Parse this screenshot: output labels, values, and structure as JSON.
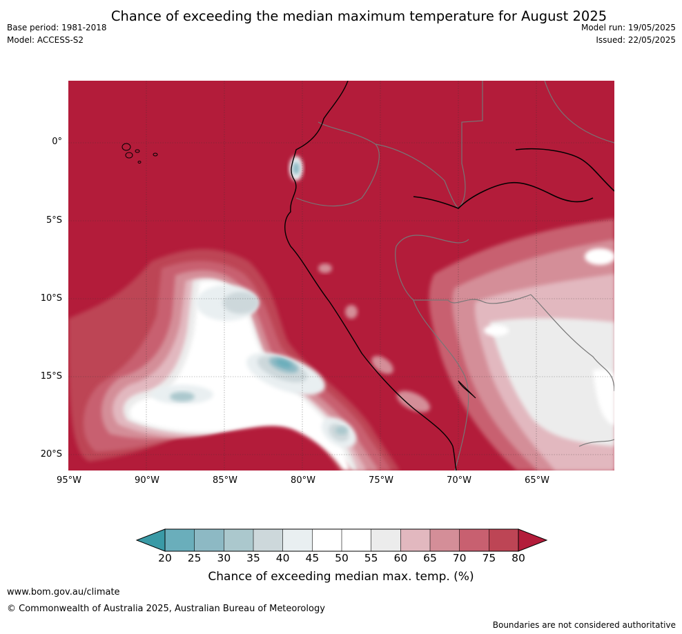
{
  "title": "Chance of exceeding the median maximum temperature for August 2025",
  "meta": {
    "base_period": "Base period: 1981-2018",
    "model": "Model: ACCESS-S2",
    "model_run": "Model run: 19/05/2025",
    "issued": "Issued: 22/05/2025"
  },
  "map": {
    "lat_labels": [
      "0°",
      "5°S",
      "10°S",
      "15°S",
      "20°S"
    ],
    "lon_labels": [
      "95°W",
      "90°W",
      "85°W",
      "80°W",
      "75°W",
      "70°W",
      "65°W"
    ]
  },
  "colorbar": {
    "ticks": [
      "20",
      "25",
      "30",
      "35",
      "40",
      "45",
      "50",
      "55",
      "60",
      "65",
      "70",
      "75",
      "80"
    ],
    "colors": [
      "#3a9aa6",
      "#6aaebb",
      "#8db9c4",
      "#abc8cd",
      "#cdd8db",
      "#e9eff1",
      "#ffffff",
      "#ffffff",
      "#ececec",
      "#e2b8bf",
      "#d48e98",
      "#c86070",
      "#bd4555",
      "#b31c3a"
    ],
    "label": "Chance of exceeding median max. temp. (%)"
  },
  "footer": {
    "url": "www.bom.gov.au/climate",
    "copyright": "© Commonwealth of Australia 2025, Australian Bureau of Meteorology",
    "note": "Boundaries are not considered authoritative"
  }
}
